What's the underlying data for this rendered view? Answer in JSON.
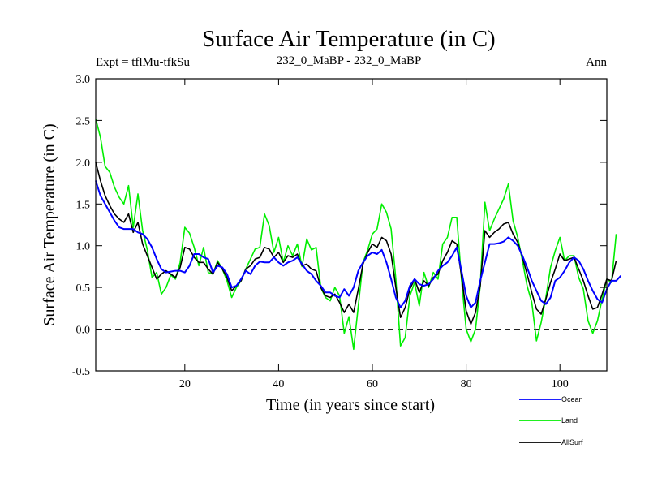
{
  "chart_data": {
    "type": "line",
    "title": "Surface Air Temperature (in C)",
    "subtitle_left": "Expt = tflMu-tfkSu",
    "subtitle_center": "232_0_MaBP - 232_0_MaBP",
    "subtitle_right": "Ann",
    "xlabel": "Time (in years since start)",
    "ylabel": "Surface Air Temperature (in C)",
    "xlim": [
      1,
      110
    ],
    "ylim": [
      -0.5,
      3.0
    ],
    "xticks": [
      20,
      40,
      60,
      80,
      100
    ],
    "yticks": [
      "3.0",
      "2.5",
      "2.0",
      "1.5",
      "1.0",
      "0.5",
      "0.0",
      "-0.5"
    ],
    "reference_line_y": 0.0,
    "legend_position": "bottom-right",
    "series": [
      {
        "name": "Ocean",
        "color": "#0000ff",
        "values": [
          1.78,
          1.6,
          1.5,
          1.4,
          1.3,
          1.22,
          1.2,
          1.2,
          1.2,
          1.16,
          1.14,
          1.08,
          0.98,
          0.84,
          0.72,
          0.68,
          0.69,
          0.7,
          0.7,
          0.68,
          0.76,
          0.9,
          0.9,
          0.86,
          0.84,
          0.68,
          0.76,
          0.74,
          0.66,
          0.5,
          0.52,
          0.6,
          0.7,
          0.66,
          0.76,
          0.81,
          0.8,
          0.8,
          0.86,
          0.8,
          0.76,
          0.8,
          0.82,
          0.86,
          0.78,
          0.7,
          0.66,
          0.58,
          0.52,
          0.44,
          0.44,
          0.4,
          0.38,
          0.48,
          0.4,
          0.5,
          0.7,
          0.8,
          0.88,
          0.92,
          0.9,
          0.95,
          0.8,
          0.6,
          0.38,
          0.26,
          0.34,
          0.52,
          0.6,
          0.54,
          0.52,
          0.54,
          0.6,
          0.7,
          0.76,
          0.8,
          0.88,
          0.98,
          0.7,
          0.4,
          0.26,
          0.32,
          0.58,
          0.8,
          1.02,
          1.02,
          1.03,
          1.05,
          1.1,
          1.06,
          1.0,
          0.88,
          0.74,
          0.58,
          0.46,
          0.34,
          0.3,
          0.38,
          0.58,
          0.62,
          0.7,
          0.8,
          0.86,
          0.82,
          0.72,
          0.58,
          0.46,
          0.36,
          0.32,
          0.48,
          0.58,
          0.58,
          0.64
        ]
      },
      {
        "name": "Land",
        "color": "#00ee00",
        "values": [
          2.52,
          2.3,
          1.95,
          1.88,
          1.7,
          1.58,
          1.5,
          1.72,
          1.22,
          1.62,
          1.18,
          0.95,
          0.62,
          0.68,
          0.42,
          0.5,
          0.65,
          0.6,
          0.8,
          1.22,
          1.15,
          0.98,
          0.76,
          0.98,
          0.68,
          0.66,
          0.82,
          0.72,
          0.58,
          0.38,
          0.5,
          0.58,
          0.72,
          0.84,
          0.96,
          0.98,
          1.38,
          1.24,
          0.92,
          1.1,
          0.8,
          1.0,
          0.88,
          1.02,
          0.75,
          1.08,
          0.95,
          0.98,
          0.5,
          0.38,
          0.34,
          0.5,
          0.4,
          -0.05,
          0.15,
          -0.24,
          0.28,
          0.8,
          0.95,
          1.14,
          1.2,
          1.5,
          1.4,
          1.2,
          0.6,
          -0.2,
          -0.1,
          0.4,
          0.56,
          0.28,
          0.68,
          0.5,
          0.68,
          0.6,
          1.02,
          1.1,
          1.34,
          1.34,
          0.6,
          0.0,
          -0.15,
          0.0,
          0.52,
          1.52,
          1.18,
          1.32,
          1.44,
          1.56,
          1.74,
          1.3,
          1.1,
          0.82,
          0.52,
          0.32,
          -0.14,
          0.08,
          0.38,
          0.74,
          0.94,
          1.1,
          0.82,
          0.88,
          0.88,
          0.62,
          0.48,
          0.1,
          -0.05,
          0.1,
          0.36,
          0.6,
          0.56,
          1.14
        ]
      },
      {
        "name": "AllSurf",
        "color": "#000000",
        "values": [
          2.0,
          1.78,
          1.6,
          1.48,
          1.38,
          1.32,
          1.28,
          1.38,
          1.16,
          1.28,
          1.02,
          0.88,
          0.74,
          0.6,
          0.66,
          0.7,
          0.66,
          0.62,
          0.74,
          0.98,
          0.96,
          0.86,
          0.8,
          0.8,
          0.72,
          0.66,
          0.8,
          0.72,
          0.62,
          0.46,
          0.52,
          0.58,
          0.72,
          0.76,
          0.84,
          0.86,
          0.98,
          0.96,
          0.86,
          0.92,
          0.8,
          0.88,
          0.86,
          0.9,
          0.76,
          0.78,
          0.72,
          0.7,
          0.5,
          0.4,
          0.38,
          0.42,
          0.32,
          0.2,
          0.3,
          0.2,
          0.48,
          0.78,
          0.92,
          1.02,
          0.98,
          1.1,
          1.06,
          0.9,
          0.5,
          0.14,
          0.26,
          0.48,
          0.6,
          0.44,
          0.58,
          0.52,
          0.62,
          0.66,
          0.82,
          0.92,
          1.06,
          1.02,
          0.64,
          0.22,
          0.06,
          0.2,
          0.52,
          1.18,
          1.1,
          1.16,
          1.2,
          1.26,
          1.28,
          1.14,
          1.04,
          0.86,
          0.66,
          0.44,
          0.24,
          0.18,
          0.36,
          0.56,
          0.72,
          0.9,
          0.82,
          0.84,
          0.86,
          0.72,
          0.58,
          0.4,
          0.24,
          0.26,
          0.42,
          0.6,
          0.58,
          0.82
        ]
      }
    ]
  }
}
